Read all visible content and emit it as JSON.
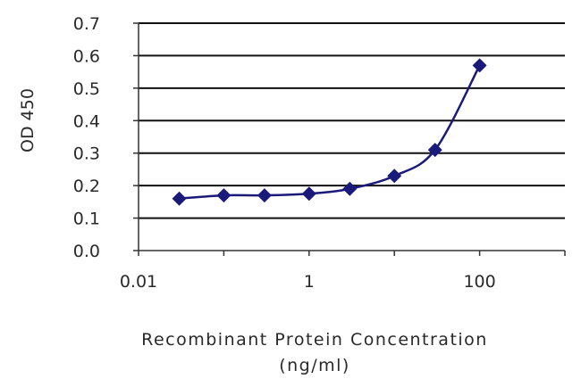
{
  "chart_data": {
    "type": "line",
    "title": "",
    "xlabel": "Recombinant Protein Concentration",
    "xlabel_unit": "(ng/ml)",
    "ylabel": "OD 450",
    "x_scale": "log",
    "xlim": [
      0.01,
      1000
    ],
    "ylim": [
      0.0,
      0.7
    ],
    "x_tick_labels": [
      "0.01",
      "1",
      "100"
    ],
    "x_tick_values": [
      0.01,
      1,
      100
    ],
    "y_tick_labels": [
      "0.0",
      "0.1",
      "0.2",
      "0.3",
      "0.4",
      "0.5",
      "0.6",
      "0.7"
    ],
    "y_tick_values": [
      0.0,
      0.1,
      0.2,
      0.3,
      0.4,
      0.5,
      0.6,
      0.7
    ],
    "grid": "horizontal",
    "legend": "none",
    "series": [
      {
        "x": [
          0.03,
          0.1,
          0.3,
          1,
          3,
          10,
          30,
          100
        ],
        "y": [
          0.16,
          0.17,
          0.17,
          0.175,
          0.19,
          0.23,
          0.31,
          0.57
        ],
        "color": "#1a1a7a",
        "marker": "diamond"
      }
    ]
  }
}
